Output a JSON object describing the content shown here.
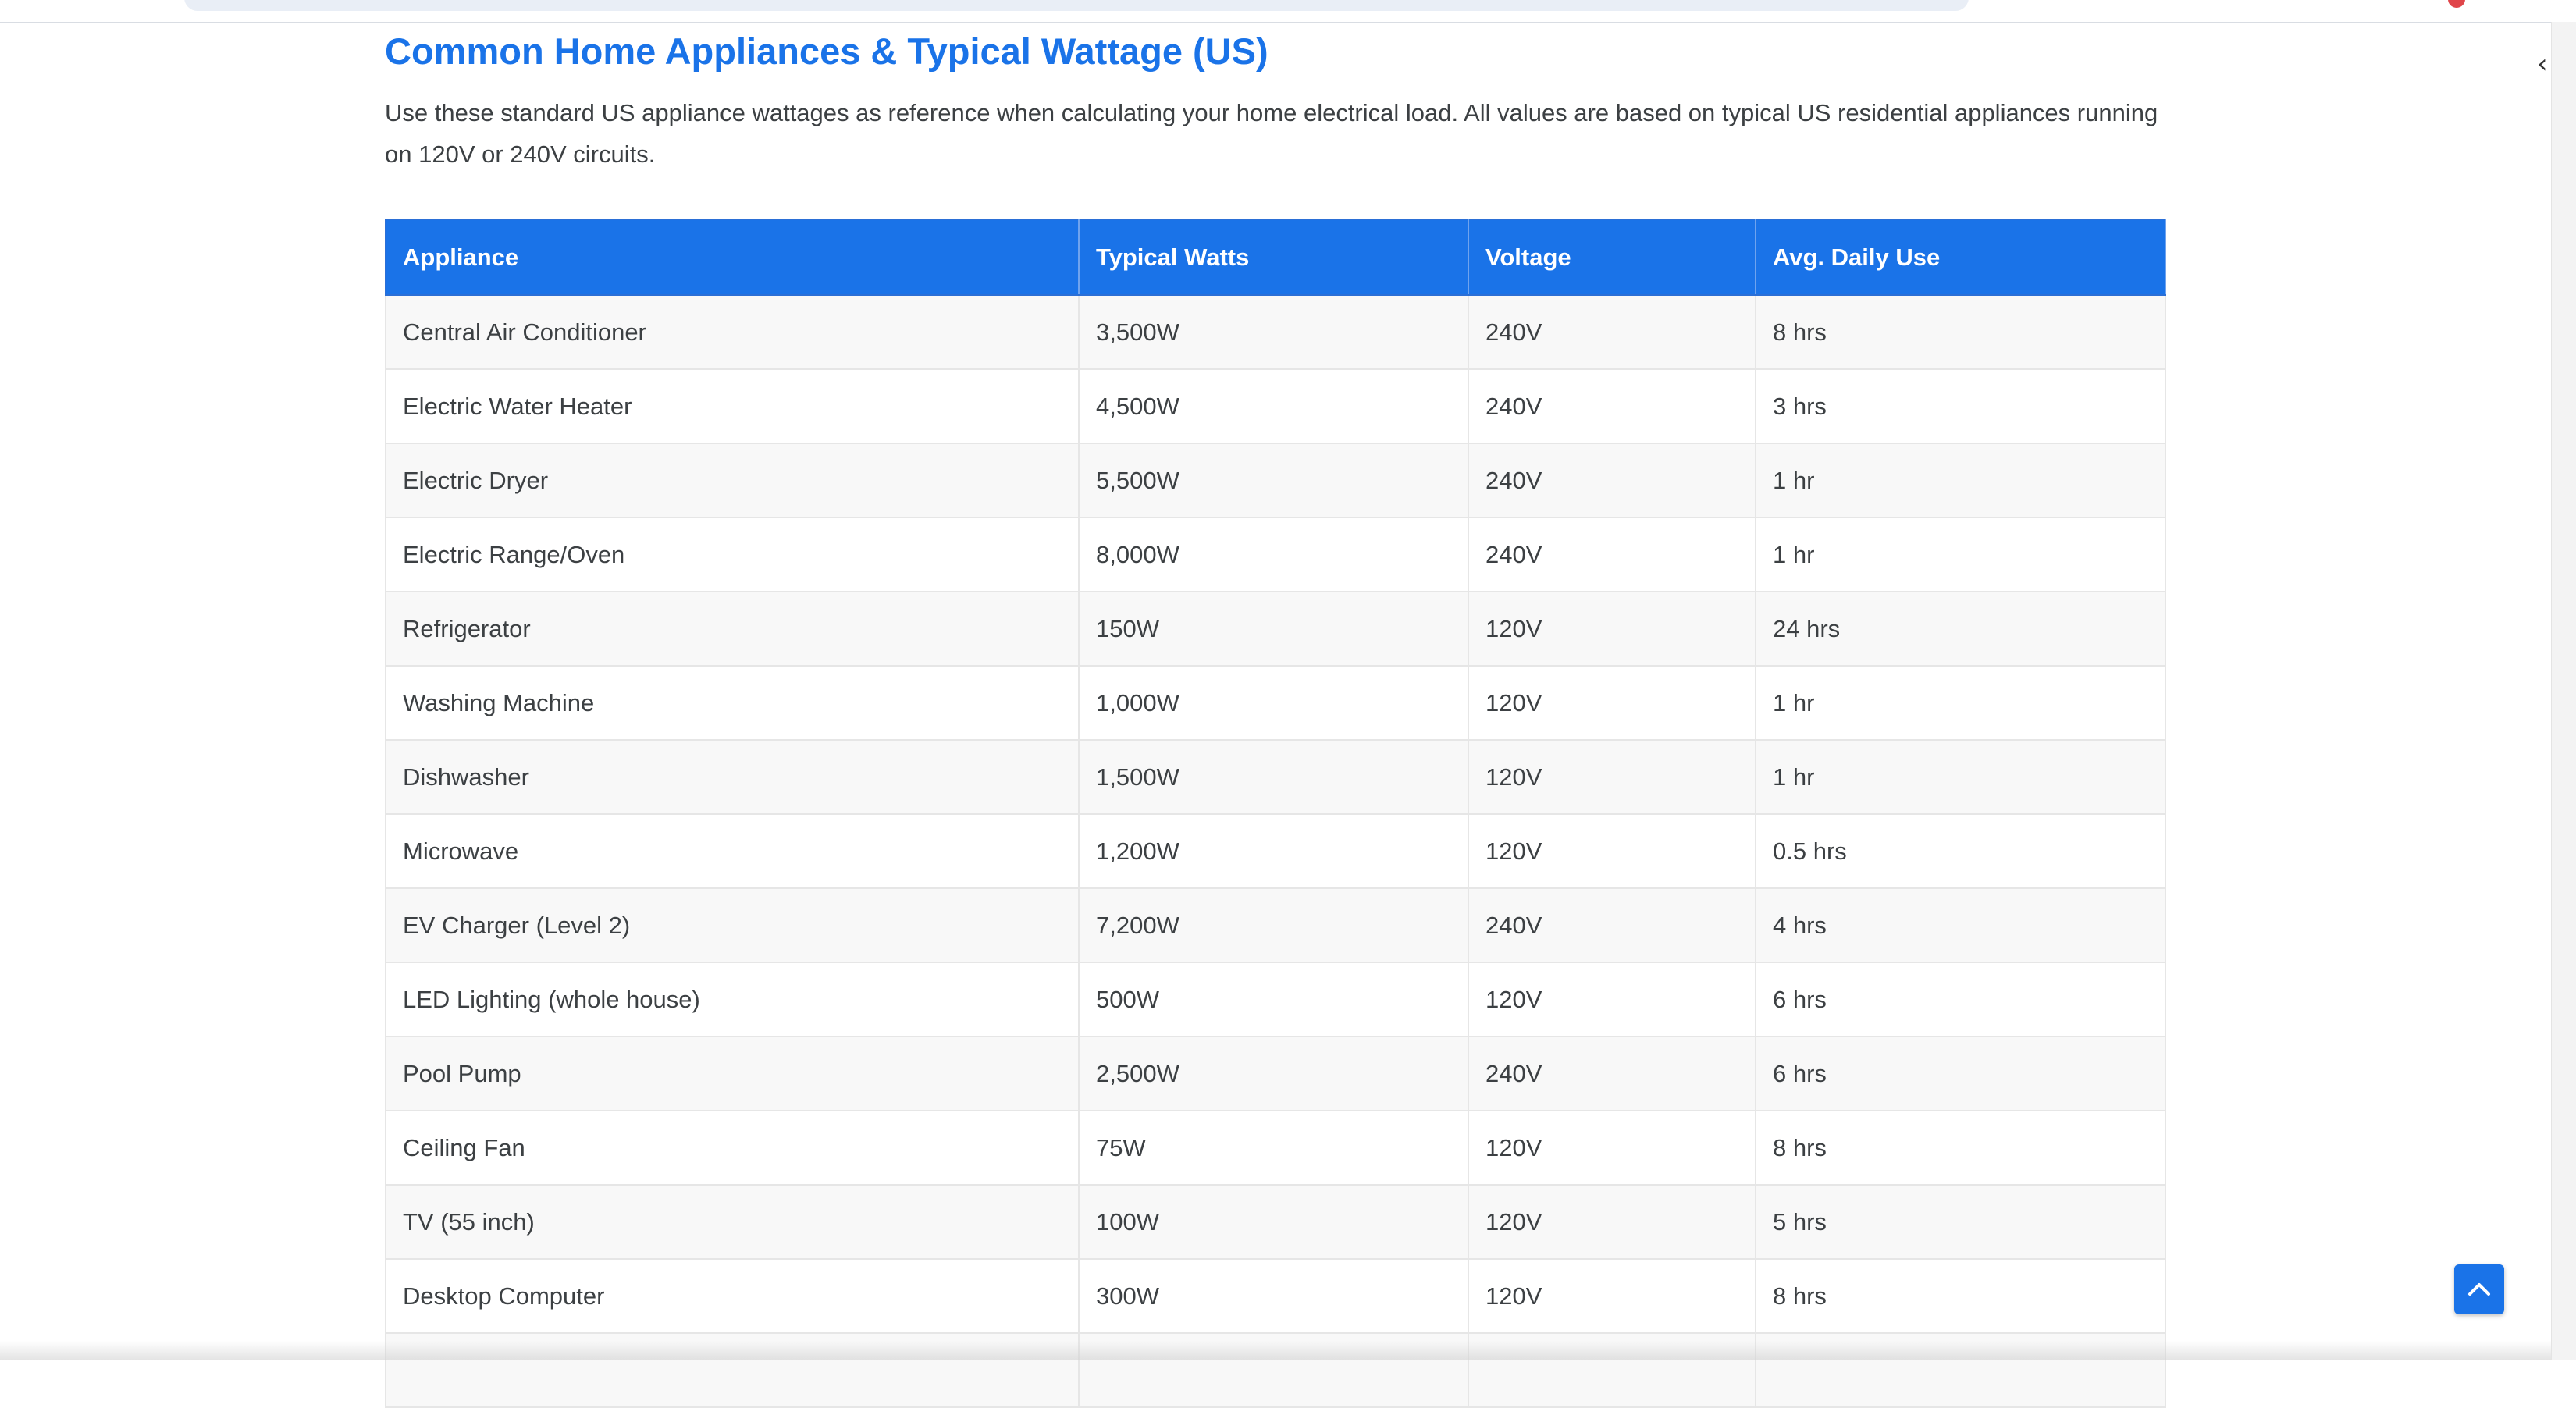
{
  "page": {
    "title": "Common Home Appliances & Typical Wattage (US)",
    "intro": "Use these standard US appliance wattages as reference when calculating your home electrical load. All values are based on typical US residential appliances running on 120V or 240V circuits."
  },
  "table": {
    "headers": [
      "Appliance",
      "Typical Watts",
      "Voltage",
      "Avg. Daily Use"
    ],
    "rows": [
      [
        "Central Air Conditioner",
        "3,500W",
        "240V",
        "8 hrs"
      ],
      [
        "Electric Water Heater",
        "4,500W",
        "240V",
        "3 hrs"
      ],
      [
        "Electric Dryer",
        "5,500W",
        "240V",
        "1 hr"
      ],
      [
        "Electric Range/Oven",
        "8,000W",
        "240V",
        "1 hr"
      ],
      [
        "Refrigerator",
        "150W",
        "120V",
        "24 hrs"
      ],
      [
        "Washing Machine",
        "1,000W",
        "120V",
        "1 hr"
      ],
      [
        "Dishwasher",
        "1,500W",
        "120V",
        "1 hr"
      ],
      [
        "Microwave",
        "1,200W",
        "120V",
        "0.5 hrs"
      ],
      [
        "EV Charger (Level 2)",
        "7,200W",
        "240V",
        "4 hrs"
      ],
      [
        "LED Lighting (whole house)",
        "500W",
        "120V",
        "6 hrs"
      ],
      [
        "Pool Pump",
        "2,500W",
        "240V",
        "6 hrs"
      ],
      [
        "Ceiling Fan",
        "75W",
        "120V",
        "8 hrs"
      ],
      [
        "TV (55 inch)",
        "100W",
        "120V",
        "5 hrs"
      ],
      [
        "Desktop Computer",
        "300W",
        "120V",
        "8 hrs"
      ]
    ]
  },
  "icons": {
    "back_to_top": "chevron-up-icon",
    "edge_glyph": "‹"
  },
  "colors": {
    "accent": "#1a73e8",
    "header_text": "#ffffff",
    "body_text": "#3c4043",
    "stripe_row": "#f8f8f8"
  }
}
